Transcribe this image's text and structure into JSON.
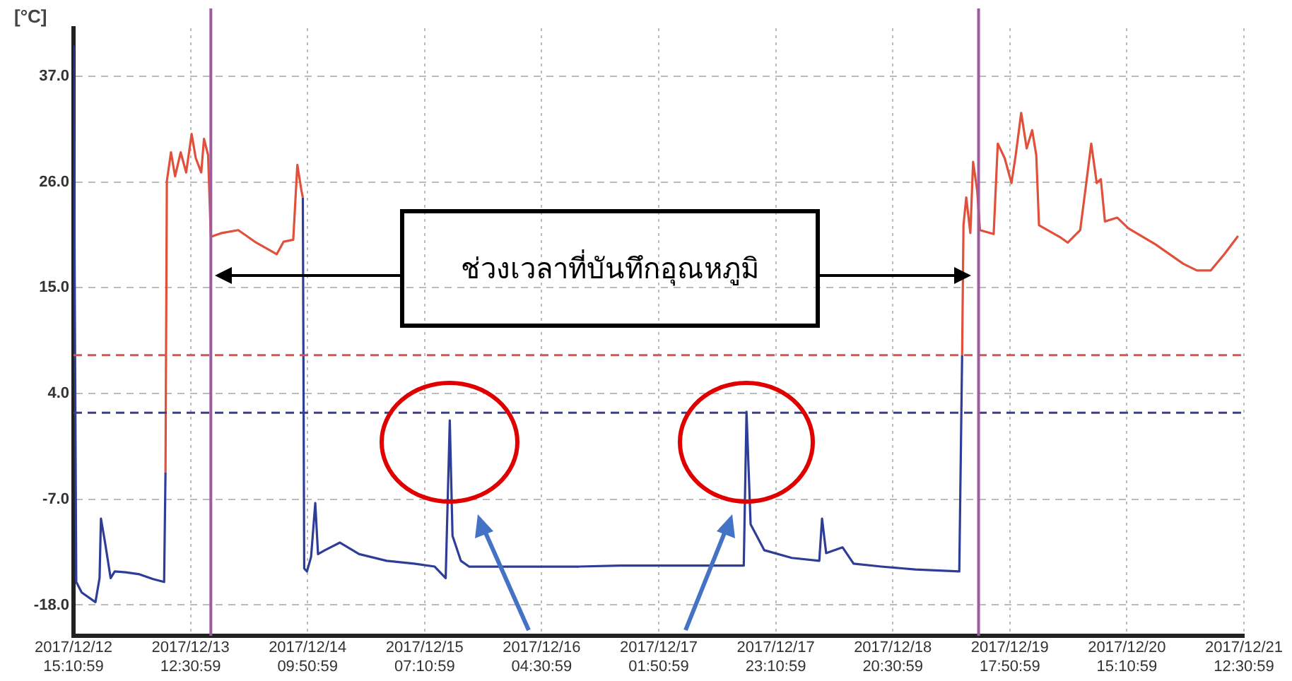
{
  "chart_data": {
    "type": "line",
    "ylabel": "[°C]",
    "annotations": [
      "ช่วงเวลาที่บันทึกอุณหภูมิ"
    ],
    "xlim": [
      "2017-12-12T15:10:59",
      "2017-12-21T12:30:59"
    ],
    "xticks": [
      {
        "value": "2017-12-12T15:10:59",
        "label": "2017/12/12 15:10:59"
      },
      {
        "value": "2017-12-13T12:30:59",
        "label": "2017/12/13 12:30:59"
      },
      {
        "value": "2017-12-14T09:50:59",
        "label": "2017/12/14 09:50:59"
      },
      {
        "value": "2017-12-15T07:10:59",
        "label": "2017/12/15 07:10:59"
      },
      {
        "value": "2017-12-16T04:30:59",
        "label": "2017/12/16 04:30:59"
      },
      {
        "value": "2017-12-17T01:50:59",
        "label": "2017/12/17 01:50:59"
      },
      {
        "value": "2017-12-17T23:10:59",
        "label": "2017/12/17 23:10:59"
      },
      {
        "value": "2017-12-18T20:30:59",
        "label": "2017/12/18 20:30:59"
      },
      {
        "value": "2017-12-19T17:50:59",
        "label": "2017/12/19 17:50:59"
      },
      {
        "value": "2017-12-20T15:10:59",
        "label": "2017/12/20 15:10:59"
      },
      {
        "value": "2017-12-21T12:30:59",
        "label": "2017/12/21 12:30:59"
      }
    ],
    "ylim": [
      -21.2,
      42
    ],
    "yticks": [
      {
        "value": -18,
        "label": "-18.0"
      },
      {
        "value": -7,
        "label": "-7.0"
      },
      {
        "value": 4,
        "label": "4.0"
      },
      {
        "value": 15,
        "label": "15.0"
      },
      {
        "value": 26,
        "label": "26.0"
      },
      {
        "value": 37,
        "label": "37.0"
      }
    ],
    "grid": true,
    "marker": "none",
    "line_style": "solid",
    "ref_lines": [
      {
        "axis": "y",
        "value": 8,
        "color": "#d9534f",
        "line_style": "dashed"
      },
      {
        "axis": "y",
        "value": 2,
        "color": "#3a3f8f",
        "line_style": "dashed"
      },
      {
        "axis": "x",
        "value": "2017-12-13T16:13",
        "color": "#a05aa0",
        "line_style": "solid"
      },
      {
        "axis": "x",
        "value": "2017-12-19T12:09",
        "color": "#a05aa0",
        "line_style": "solid"
      }
    ],
    "series": [
      {
        "color": "#2e3e98",
        "x": [
          "2017-12-12T15:11",
          "2017-12-12T15:41",
          "2017-12-12T16:41",
          "2017-12-12T19:11",
          "2017-12-12T19:56",
          "2017-12-12T20:11",
          "2017-12-12T20:56",
          "2017-12-12T21:57",
          "2017-12-12T22:42",
          "2017-12-13T00:42",
          "2017-12-13T03:12",
          "2017-12-13T05:42",
          "2017-12-13T07:42",
          "2017-12-13T07:57"
        ],
        "values": [
          40.2,
          -15.6,
          -16.7,
          -17.7,
          -15.2,
          -9.0,
          -11.5,
          -15.2,
          -14.5,
          -14.6,
          -14.8,
          -15.3,
          -15.6,
          -4.2
        ]
      },
      {
        "color": "#e0503a",
        "x": [
          "2017-12-13T07:57",
          "2017-12-13T08:12",
          "2017-12-13T08:57",
          "2017-12-13T09:42",
          "2017-12-13T10:43",
          "2017-12-13T11:43",
          "2017-12-13T12:43",
          "2017-12-13T13:28",
          "2017-12-13T14:28",
          "2017-12-13T14:58",
          "2017-12-13T15:43",
          "2017-12-13T16:13",
          "2017-12-13T18:13",
          "2017-12-13T21:13",
          "2017-12-14T00:29",
          "2017-12-14T04:14",
          "2017-12-14T05:29",
          "2017-12-14T07:14",
          "2017-12-14T07:59",
          "2017-12-14T08:44",
          "2017-12-14T08:59"
        ],
        "values": [
          -4.2,
          26.1,
          29.1,
          26.6,
          29.1,
          27.0,
          31.0,
          28.5,
          27.0,
          30.5,
          28.8,
          20.3,
          20.7,
          21.0,
          19.7,
          18.5,
          19.8,
          20.0,
          27.8,
          25.1,
          24.4
        ]
      },
      {
        "color": "#2e3e98",
        "x": [
          "2017-12-14T08:59",
          "2017-12-14T09:14",
          "2017-12-14T09:44",
          "2017-12-14T10:29",
          "2017-12-14T11:15",
          "2017-12-14T11:45",
          "2017-12-14T13:00",
          "2017-12-14T15:45",
          "2017-12-14T19:15",
          "2017-12-15T00:16",
          "2017-12-15T05:16",
          "2017-12-15T09:01",
          "2017-12-15T11:01",
          "2017-12-15T11:46",
          "2017-12-15T12:16",
          "2017-12-15T13:47",
          "2017-12-15T15:17",
          "2017-12-16T01:18",
          "2017-12-16T11:18",
          "2017-12-16T18:49",
          "2017-12-17T17:21",
          "2017-12-17T17:51",
          "2017-12-17T18:36",
          "2017-12-17T21:06",
          "2017-12-18T02:06",
          "2017-12-18T07:07",
          "2017-12-18T07:37",
          "2017-12-18T08:22",
          "2017-12-18T11:22",
          "2017-12-18T13:22",
          "2017-12-18T18:23",
          "2017-12-19T00:38",
          "2017-12-19T08:38",
          "2017-12-19T09:09"
        ],
        "values": [
          24.4,
          -14.2,
          -14.5,
          -13.0,
          -7.4,
          -12.7,
          -12.3,
          -11.5,
          -12.7,
          -13.4,
          -13.7,
          -14.0,
          -15.2,
          1.2,
          -10.8,
          -13.4,
          -14.0,
          -14.0,
          -14.0,
          -13.9,
          -13.9,
          2.1,
          -9.6,
          -12.3,
          -13.1,
          -13.4,
          -9.0,
          -12.6,
          -12.0,
          -13.7,
          -14.0,
          -14.3,
          -14.5,
          8.0
        ]
      },
      {
        "color": "#e0503a",
        "x": [
          "2017-12-19T09:09",
          "2017-12-19T09:24",
          "2017-12-19T09:54",
          "2017-12-19T10:39",
          "2017-12-19T11:09",
          "2017-12-19T11:54",
          "2017-12-19T12:24",
          "2017-12-19T14:54",
          "2017-12-19T15:39",
          "2017-12-19T16:54",
          "2017-12-19T18:09",
          "2017-12-19T18:55",
          "2017-12-19T19:55",
          "2017-12-19T20:55",
          "2017-12-19T21:55",
          "2017-12-19T22:40",
          "2017-12-19T23:10",
          "2017-12-20T02:55",
          "2017-12-20T04:25",
          "2017-12-20T06:40",
          "2017-12-20T07:40",
          "2017-12-20T08:41",
          "2017-12-20T09:41",
          "2017-12-20T10:26",
          "2017-12-20T11:11",
          "2017-12-20T13:26",
          "2017-12-20T15:26",
          "2017-12-20T20:26",
          "2017-12-21T01:27",
          "2017-12-21T03:57",
          "2017-12-21T06:27",
          "2017-12-21T08:57",
          "2017-12-21T11:27"
        ],
        "values": [
          8.0,
          21.5,
          24.4,
          20.7,
          28.1,
          25.1,
          21.0,
          20.6,
          30.0,
          28.5,
          25.9,
          28.8,
          33.2,
          29.5,
          31.4,
          28.8,
          21.5,
          20.3,
          19.7,
          21.0,
          25.4,
          30.0,
          25.9,
          26.3,
          21.9,
          22.3,
          21.2,
          19.5,
          17.5,
          16.8,
          16.8,
          18.5,
          20.4
        ]
      }
    ]
  }
}
